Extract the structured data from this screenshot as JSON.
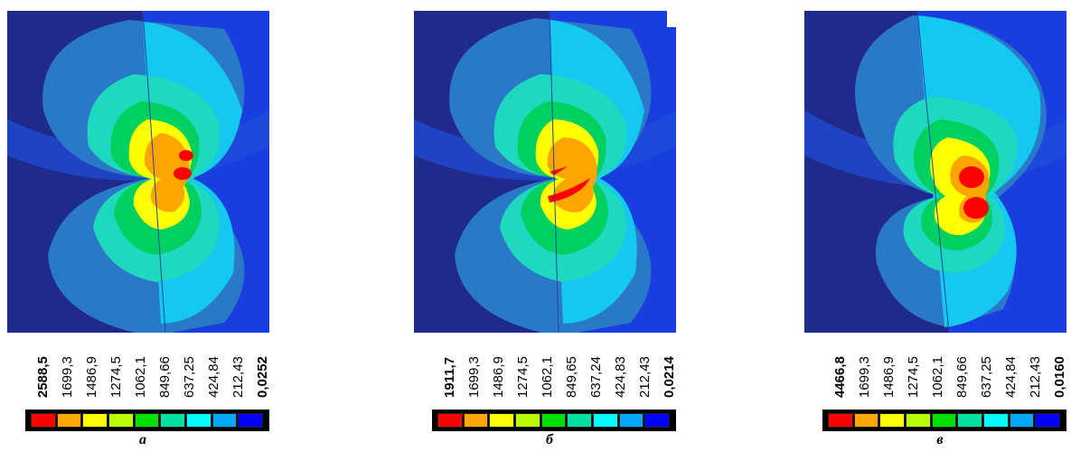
{
  "scale_colors": [
    "#ff0000",
    "#ffa500",
    "#ffff00",
    "#b8ff00",
    "#00e000",
    "#00e0a0",
    "#00ffff",
    "#00a8ff",
    "#0000ff"
  ],
  "panels": [
    {
      "caption": "а",
      "ticks": [
        "2588,5",
        "1699,3",
        "1486,9",
        "1274,5",
        "1062,1",
        "849,66",
        "637,25",
        "424,84",
        "212,43",
        "0,0252"
      ]
    },
    {
      "caption": "б",
      "ticks": [
        "1911,7",
        "1699,3",
        "1486,9",
        "1274,5",
        "1062,1",
        "849,65",
        "637,24",
        "424,83",
        "212,43",
        "0,0214"
      ]
    },
    {
      "caption": "в",
      "ticks": [
        "4466,8",
        "1699,3",
        "1486,9",
        "1274,5",
        "1062,1",
        "849,66",
        "637,25",
        "424,84",
        "212,43",
        "0,0160"
      ]
    }
  ]
}
